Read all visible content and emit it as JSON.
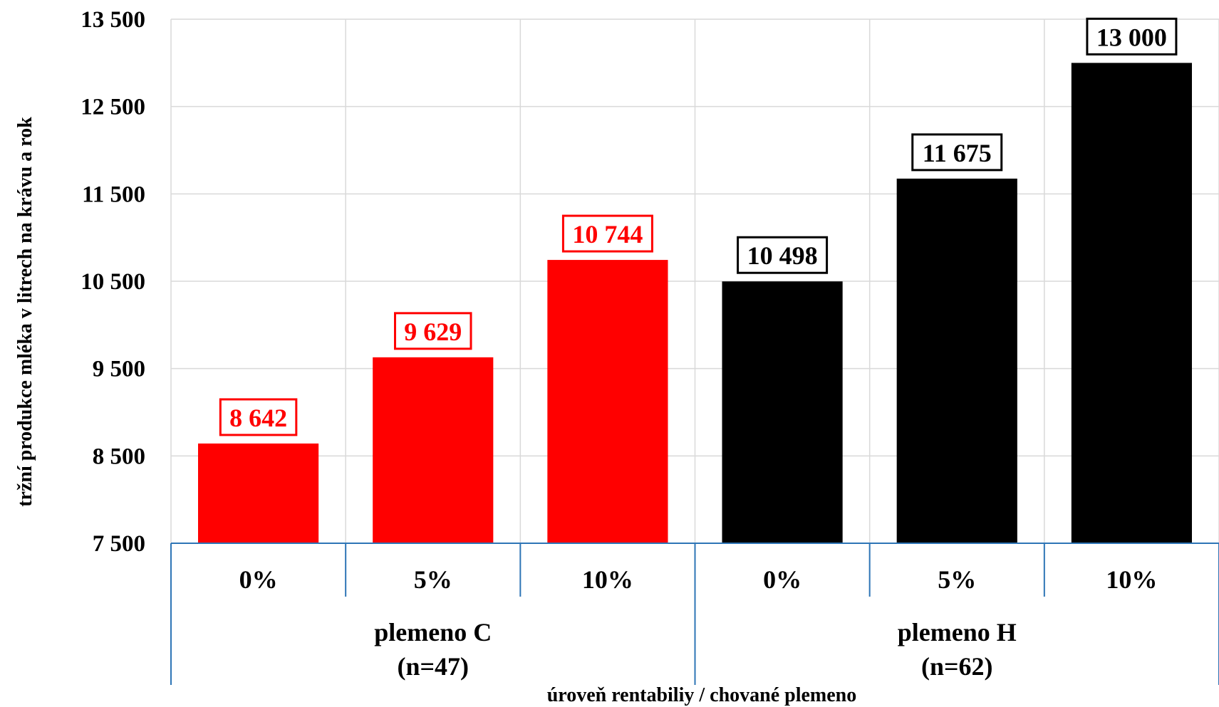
{
  "chart_data": {
    "type": "bar",
    "ylabel": "tržní produkce mléka v litrech na krávu a rok",
    "xlabel": "úroveň rentabiliy / chované plemeno",
    "ylim": [
      7500,
      13500
    ],
    "yticks": [
      7500,
      8500,
      9500,
      10500,
      11500,
      12500,
      13500
    ],
    "ytick_labels": [
      "7 500",
      "8 500",
      "9 500",
      "10 500",
      "11 500",
      "12 500",
      "13 500"
    ],
    "grid": true,
    "categories": [
      "0%",
      "5%",
      "10%",
      "0%",
      "5%",
      "10%"
    ],
    "groups": [
      {
        "label": "plemeno C",
        "sublabel": "(n=47)"
      },
      {
        "label": "plemeno H",
        "sublabel": "(n=62)"
      }
    ],
    "series": [
      {
        "values": [
          8642,
          9629,
          10744,
          10498,
          11675,
          13000
        ],
        "value_labels": [
          "8 642",
          "9 629",
          "10 744",
          "10 498",
          "11 675",
          "13 000"
        ],
        "colors": [
          "#ff0000",
          "#ff0000",
          "#ff0000",
          "#000000",
          "#000000",
          "#000000"
        ]
      }
    ]
  }
}
